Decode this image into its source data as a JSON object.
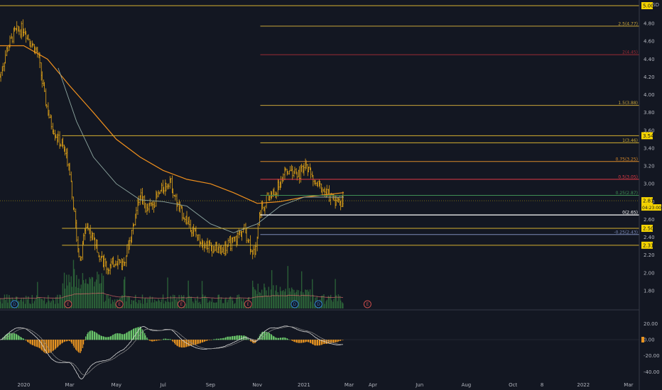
{
  "currency": "USD",
  "colors": {
    "bg": "#131722",
    "candle": "#e6a617",
    "ma_slow": "#f0901d",
    "ma_fast": "#8da6a0",
    "ma_mid": "#6a6fd9",
    "volume": "#2f6b3b",
    "volume_ma": "#e06b6b",
    "macd_pos": "#6bc76b",
    "macd_neg": "#e79321",
    "price_badge": "#f5d400",
    "white": "#ffffff"
  },
  "chart_data": [
    {
      "type": "candlestick",
      "ylim": [
        1.6,
        5.0
      ],
      "yticks": [
        "4.80",
        "4.60",
        "4.40",
        "4.20",
        "4.00",
        "3.80",
        "3.60",
        "3.40",
        "3.20",
        "3.00",
        "2.80",
        "2.60",
        "2.40",
        "2.20",
        "2.00",
        "1.80"
      ],
      "xticks": [
        "2020",
        "Mar",
        "May",
        "Jul",
        "Sep",
        "Nov",
        "2021",
        "Mar",
        "Apr",
        "Jun",
        "Aug",
        "Oct",
        "8",
        "2022",
        "Mar"
      ],
      "close_path": [
        [
          "2019-12-01",
          4.2
        ],
        [
          "2019-12-10",
          4.5
        ],
        [
          "2019-12-20",
          4.7
        ],
        [
          "2020-01-01",
          4.75
        ],
        [
          "2020-01-10",
          4.6
        ],
        [
          "2020-01-20",
          4.45
        ],
        [
          "2020-01-28",
          4.0
        ],
        [
          "2020-02-05",
          3.7
        ],
        [
          "2020-02-15",
          3.5
        ],
        [
          "2020-02-22",
          3.4
        ],
        [
          "2020-03-01",
          3.2
        ],
        [
          "2020-03-08",
          2.6
        ],
        [
          "2020-03-15",
          2.1
        ],
        [
          "2020-03-22",
          2.55
        ],
        [
          "2020-04-01",
          2.4
        ],
        [
          "2020-04-10",
          2.2
        ],
        [
          "2020-04-20",
          2.05
        ],
        [
          "2020-05-01",
          2.15
        ],
        [
          "2020-05-10",
          2.1
        ],
        [
          "2020-05-20",
          2.4
        ],
        [
          "2020-06-01",
          2.9
        ],
        [
          "2020-06-10",
          2.7
        ],
        [
          "2020-06-20",
          2.8
        ],
        [
          "2020-07-01",
          2.95
        ],
        [
          "2020-07-10",
          3.05
        ],
        [
          "2020-07-20",
          2.75
        ],
        [
          "2020-08-01",
          2.6
        ],
        [
          "2020-08-15",
          2.4
        ],
        [
          "2020-09-01",
          2.3
        ],
        [
          "2020-09-15",
          2.25
        ],
        [
          "2020-10-01",
          2.35
        ],
        [
          "2020-10-15",
          2.5
        ],
        [
          "2020-10-28",
          2.2
        ],
        [
          "2020-11-05",
          2.7
        ],
        [
          "2020-11-15",
          2.85
        ],
        [
          "2020-11-25",
          2.9
        ],
        [
          "2020-12-05",
          3.1
        ],
        [
          "2020-12-15",
          3.15
        ],
        [
          "2020-12-25",
          3.1
        ],
        [
          "2021-01-05",
          3.2
        ],
        [
          "2021-01-15",
          3.0
        ],
        [
          "2021-01-25",
          2.95
        ],
        [
          "2021-02-05",
          2.85
        ],
        [
          "2021-02-15",
          2.8
        ],
        [
          "2021-02-22",
          2.81
        ]
      ],
      "ma_slow": [
        [
          "2019-12-01",
          4.55
        ],
        [
          "2020-01-01",
          4.55
        ],
        [
          "2020-02-01",
          4.4
        ],
        [
          "2020-03-01",
          4.1
        ],
        [
          "2020-04-01",
          3.8
        ],
        [
          "2020-05-01",
          3.5
        ],
        [
          "2020-06-01",
          3.3
        ],
        [
          "2020-07-01",
          3.15
        ],
        [
          "2020-08-01",
          3.05
        ],
        [
          "2020-09-01",
          3.0
        ],
        [
          "2020-10-01",
          2.9
        ],
        [
          "2020-11-01",
          2.78
        ],
        [
          "2020-12-01",
          2.8
        ],
        [
          "2021-01-01",
          2.85
        ],
        [
          "2021-02-22",
          2.9
        ]
      ],
      "ma_fast": [
        [
          "2020-02-15",
          4.3
        ],
        [
          "2020-03-10",
          3.7
        ],
        [
          "2020-04-01",
          3.3
        ],
        [
          "2020-05-01",
          3.0
        ],
        [
          "2020-06-01",
          2.82
        ],
        [
          "2020-07-01",
          2.8
        ],
        [
          "2020-08-01",
          2.75
        ],
        [
          "2020-09-01",
          2.55
        ],
        [
          "2020-10-01",
          2.45
        ],
        [
          "2020-11-01",
          2.55
        ],
        [
          "2020-12-01",
          2.75
        ],
        [
          "2021-01-01",
          2.85
        ],
        [
          "2021-02-22",
          2.85
        ]
      ],
      "fib_levels": [
        {
          "label": "2.5(4.77)",
          "value": 4.77,
          "color": "#c8a43a"
        },
        {
          "label": "2(4.45)",
          "value": 4.45,
          "color": "#9b2c35"
        },
        {
          "label": "1.5(3.88)",
          "value": 3.88,
          "color": "#c8a43a"
        },
        {
          "label": "1(3.46)",
          "value": 3.46,
          "color": "#d4b030"
        },
        {
          "label": "0.75(3.25)",
          "value": 3.25,
          "color": "#d98a29"
        },
        {
          "label": "0.5(3.05)",
          "value": 3.05,
          "color": "#e33a46"
        },
        {
          "label": "0.25(2.87)",
          "value": 2.87,
          "color": "#3f8f55"
        },
        {
          "label": "0(2.65)",
          "value": 2.65,
          "color": "#ffffff"
        },
        {
          "label": "-0.25(2.43)",
          "value": 2.43,
          "color": "#7c8bb8"
        }
      ],
      "h_lines": [
        {
          "value": 5.0,
          "color": "#d4b030",
          "badge": "5.00"
        },
        {
          "value": 3.54,
          "color": "#d4b030",
          "badge": "3.54"
        },
        {
          "value": 2.5,
          "color": "#d4b030",
          "badge": "2.50"
        },
        {
          "value": 2.31,
          "color": "#d4b030",
          "badge": "2.31"
        }
      ],
      "current_price": "2.81",
      "countdown": "04:23:00",
      "events": [
        {
          "date": "2019-12-20",
          "type": "D"
        },
        {
          "date": "2020-02-28",
          "type": "E"
        },
        {
          "date": "2020-05-05",
          "type": "E"
        },
        {
          "date": "2020-07-25",
          "type": "E"
        },
        {
          "date": "2020-10-20",
          "type": "E"
        },
        {
          "date": "2020-12-20",
          "type": "D"
        },
        {
          "date": "2021-01-20",
          "type": "D"
        },
        {
          "date": "2021-03-25",
          "type": "E"
        }
      ]
    },
    {
      "type": "macd",
      "ylim": [
        -45,
        30
      ],
      "yticks": [
        "20.00",
        "0.00",
        "-20.00",
        "-40.00"
      ]
    }
  ]
}
